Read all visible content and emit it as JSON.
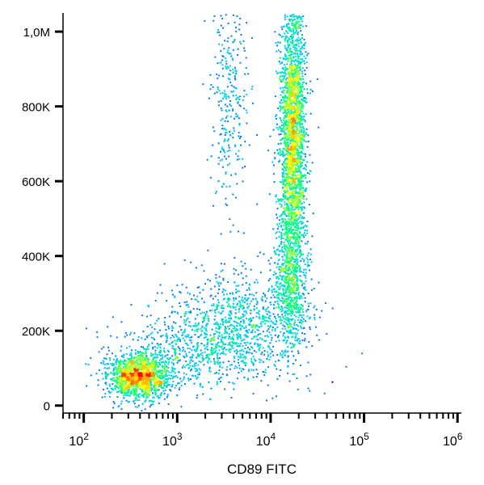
{
  "chart_data": {
    "type": "scatter",
    "subtype": "flow-cytometry-density-dot-plot",
    "title": "",
    "xlabel": "CD89 FITC",
    "ylabel": "",
    "x_scale": "log",
    "xlim": [
      60,
      1100000
    ],
    "ylim": [
      -20000,
      1050000
    ],
    "x_ticks": [
      {
        "value": 100,
        "base": "10",
        "exp": "2"
      },
      {
        "value": 1000,
        "base": "10",
        "exp": "3"
      },
      {
        "value": 10000,
        "base": "10",
        "exp": "4"
      },
      {
        "value": 100000,
        "base": "10",
        "exp": "5"
      },
      {
        "value": 1000000,
        "base": "10",
        "exp": "6"
      }
    ],
    "y_ticks": [
      {
        "value": 0,
        "label": "0"
      },
      {
        "value": 200000,
        "label": "200K"
      },
      {
        "value": 400000,
        "label": "400K"
      },
      {
        "value": 600000,
        "label": "600K"
      },
      {
        "value": 800000,
        "label": "800K"
      },
      {
        "value": 1000000,
        "label": "1,0M"
      }
    ],
    "grid": false,
    "legend": "none",
    "color_scale": [
      "#0000ff",
      "#00c8ff",
      "#00ff80",
      "#ffff00",
      "#ff8000",
      "#ff0000"
    ],
    "populations": [
      {
        "x_center": 380,
        "y_center": 80000,
        "x_spread_decades": 0.17,
        "y_spread": 30000,
        "relative_count": 1500,
        "peak_density": "high"
      },
      {
        "x_center": 17000,
        "y_center": 720000,
        "x_spread_decades": 0.07,
        "y_spread": 190000,
        "relative_count": 2600,
        "peak_density": "medium"
      },
      {
        "x_center": 16000,
        "y_center": 330000,
        "x_spread_decades": 0.09,
        "y_spread": 90000,
        "relative_count": 700,
        "peak_density": "medium"
      },
      {
        "x_center": 4500,
        "y_center": 220000,
        "x_spread_decades": 0.35,
        "y_spread": 70000,
        "relative_count": 900,
        "peak_density": "low"
      },
      {
        "x_center": 1300,
        "y_center": 140000,
        "x_spread_decades": 0.4,
        "y_spread": 50000,
        "relative_count": 500,
        "peak_density": "low"
      },
      {
        "x_center": 3500,
        "y_center": 820000,
        "x_spread_decades": 0.1,
        "y_spread": 150000,
        "relative_count": 300,
        "peak_density": "low"
      }
    ],
    "outlier_point": {
      "x": 45000,
      "y": 65000
    }
  }
}
